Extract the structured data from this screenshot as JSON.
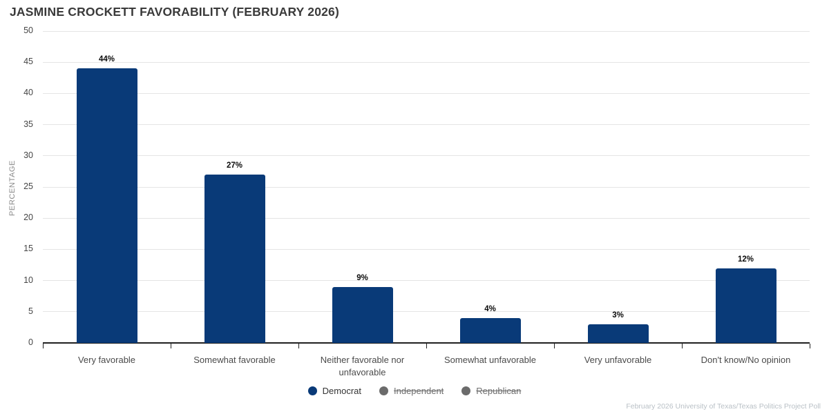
{
  "title": "JASMINE CROCKETT FAVORABILITY (FEBRUARY 2026)",
  "footer": "February 2026 University of Texas/Texas Politics Project Poll",
  "colors": {
    "bar": "#093a78",
    "inactive_gray": "#6b6b6b",
    "gridline": "#e4e4e4",
    "axis": "#1f1f1f"
  },
  "chart_data": {
    "type": "bar",
    "title": "JASMINE CROCKETT FAVORABILITY (FEBRUARY 2026)",
    "categories": [
      "Very favorable",
      "Somewhat favorable",
      "Neither favorable nor unfavorable",
      "Somewhat unfavorable",
      "Very unfavorable",
      "Don't know/No opinion"
    ],
    "series": [
      {
        "name": "Democrat",
        "color": "#093a78",
        "active": true,
        "values": [
          44,
          27,
          9,
          4,
          3,
          12
        ]
      },
      {
        "name": "Independent",
        "color": "#6b6b6b",
        "active": false
      },
      {
        "name": "Republican",
        "color": "#6b6b6b",
        "active": false
      }
    ],
    "value_labels": [
      "44%",
      "27%",
      "9%",
      "4%",
      "3%",
      "12%"
    ],
    "xlabel": "",
    "ylabel": "PERCENTAGE",
    "ylim": [
      0,
      50
    ],
    "yticks": [
      0,
      5,
      10,
      15,
      20,
      25,
      30,
      35,
      40,
      45,
      50
    ],
    "grid": true,
    "legend_position": "bottom"
  }
}
